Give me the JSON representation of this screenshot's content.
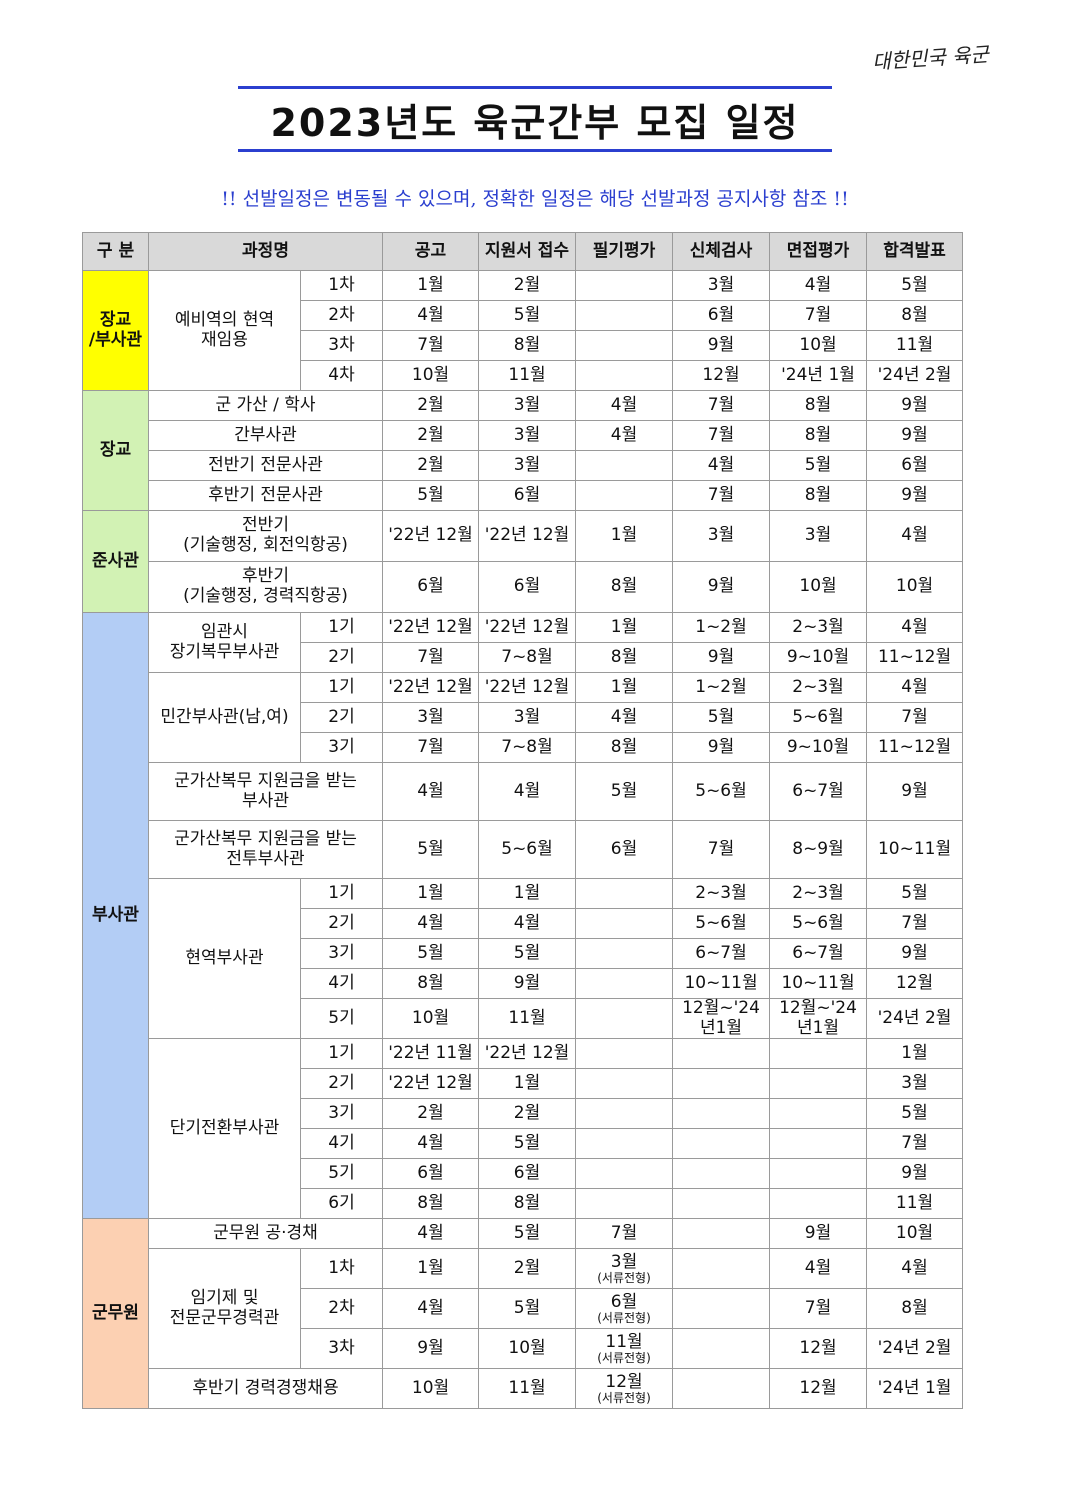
{
  "logo_text": "대한민국 육군",
  "title": "2023년도 육군간부 모집 일정",
  "notice": "!! 선발일정은 변동될 수 있으며, 정확한 일정은 해당 선발과정 공지사항 참조 !!",
  "table": {
    "headers": [
      "구 분",
      "과정명",
      "공고",
      "지원서 접수",
      "필기평가",
      "신체검사",
      "면접평가",
      "합격발표"
    ],
    "groups": [
      {
        "category": "장교\n/부사관",
        "color": "#ffff00",
        "courses": [
          {
            "name": "예비역의 현역\n재임용",
            "rounds": [
              {
                "round": "1차",
                "cells": [
                  "1월",
                  "2월",
                  "",
                  "3월",
                  "4월",
                  "5월"
                ]
              },
              {
                "round": "2차",
                "cells": [
                  "4월",
                  "5월",
                  "",
                  "6월",
                  "7월",
                  "8월"
                ]
              },
              {
                "round": "3차",
                "cells": [
                  "7월",
                  "8월",
                  "",
                  "9월",
                  "10월",
                  "11월"
                ]
              },
              {
                "round": "4차",
                "cells": [
                  "10월",
                  "11월",
                  "",
                  "12월",
                  "'24년 1월",
                  "'24년 2월"
                ]
              }
            ]
          }
        ]
      },
      {
        "category": "장교",
        "color": "#d2f2b4",
        "courses": [
          {
            "name": "군 가산 / 학사",
            "cells": [
              "2월",
              "3월",
              "4월",
              "7월",
              "8월",
              "9월"
            ]
          },
          {
            "name": "간부사관",
            "cells": [
              "2월",
              "3월",
              "4월",
              "7월",
              "8월",
              "9월"
            ]
          },
          {
            "name": "전반기 전문사관",
            "cells": [
              "2월",
              "3월",
              "",
              "4월",
              "5월",
              "6월"
            ]
          },
          {
            "name": "후반기 전문사관",
            "cells": [
              "5월",
              "6월",
              "",
              "7월",
              "8월",
              "9월"
            ]
          }
        ]
      },
      {
        "category": "준사관",
        "color": "#d2f2b4",
        "courses": [
          {
            "name": "전반기\n(기술행정, 회전익항공)",
            "cells": [
              "'22년 12월",
              "'22년 12월",
              "1월",
              "3월",
              "3월",
              "4월"
            ]
          },
          {
            "name": "후반기\n(기술행정, 경력직항공)",
            "cells": [
              "6월",
              "6월",
              "8월",
              "9월",
              "10월",
              "10월"
            ]
          }
        ]
      },
      {
        "category": "부사관",
        "color": "#b3cdf5",
        "courses": [
          {
            "name": "임관시\n장기복무부사관",
            "rounds": [
              {
                "round": "1기",
                "cells": [
                  "'22년 12월",
                  "'22년 12월",
                  "1월",
                  "1~2월",
                  "2~3월",
                  "4월"
                ]
              },
              {
                "round": "2기",
                "cells": [
                  "7월",
                  "7~8월",
                  "8월",
                  "9월",
                  "9~10월",
                  "11~12월"
                ]
              }
            ]
          },
          {
            "name": "민간부사관(남,여)",
            "rounds": [
              {
                "round": "1기",
                "cells": [
                  "'22년 12월",
                  "'22년 12월",
                  "1월",
                  "1~2월",
                  "2~3월",
                  "4월"
                ]
              },
              {
                "round": "2기",
                "cells": [
                  "3월",
                  "3월",
                  "4월",
                  "5월",
                  "5~6월",
                  "7월"
                ]
              },
              {
                "round": "3기",
                "cells": [
                  "7월",
                  "7~8월",
                  "8월",
                  "9월",
                  "9~10월",
                  "11~12월"
                ]
              }
            ]
          },
          {
            "name": "군가산복무 지원금을 받는\n부사관",
            "cells": [
              "4월",
              "4월",
              "5월",
              "5~6월",
              "6~7월",
              "9월"
            ]
          },
          {
            "name": "군가산복무 지원금을 받는\n전투부사관",
            "cells": [
              "5월",
              "5~6월",
              "6월",
              "7월",
              "8~9월",
              "10~11월"
            ]
          },
          {
            "name": "현역부사관",
            "rounds": [
              {
                "round": "1기",
                "cells": [
                  "1월",
                  "1월",
                  "",
                  "2~3월",
                  "2~3월",
                  "5월"
                ]
              },
              {
                "round": "2기",
                "cells": [
                  "4월",
                  "4월",
                  "",
                  "5~6월",
                  "5~6월",
                  "7월"
                ]
              },
              {
                "round": "3기",
                "cells": [
                  "5월",
                  "5월",
                  "",
                  "6~7월",
                  "6~7월",
                  "9월"
                ]
              },
              {
                "round": "4기",
                "cells": [
                  "8월",
                  "9월",
                  "",
                  "10~11월",
                  "10~11월",
                  "12월"
                ]
              },
              {
                "round": "5기",
                "cells": [
                  "10월",
                  "11월",
                  "",
                  "12월~'24년1월",
                  "12월~'24년1월",
                  "'24년 2월"
                ]
              }
            ]
          },
          {
            "name": "단기전환부사관",
            "rounds": [
              {
                "round": "1기",
                "cells": [
                  "'22년 11월",
                  "'22년 12월",
                  "",
                  "",
                  "",
                  "1월"
                ]
              },
              {
                "round": "2기",
                "cells": [
                  "'22년 12월",
                  "1월",
                  "",
                  "",
                  "",
                  "3월"
                ]
              },
              {
                "round": "3기",
                "cells": [
                  "2월",
                  "2월",
                  "",
                  "",
                  "",
                  "5월"
                ]
              },
              {
                "round": "4기",
                "cells": [
                  "4월",
                  "5월",
                  "",
                  "",
                  "",
                  "7월"
                ]
              },
              {
                "round": "5기",
                "cells": [
                  "6월",
                  "6월",
                  "",
                  "",
                  "",
                  "9월"
                ]
              },
              {
                "round": "6기",
                "cells": [
                  "8월",
                  "8월",
                  "",
                  "",
                  "",
                  "11월"
                ]
              }
            ]
          }
        ]
      },
      {
        "category": "군무원",
        "color": "#fcd0b2",
        "courses": [
          {
            "name": "군무원 공·경채",
            "cells": [
              "4월",
              "5월",
              "7월",
              "",
              "9월",
              "10월"
            ]
          },
          {
            "name": "임기제 및\n전문군무경력관",
            "rounds": [
              {
                "round": "1차",
                "cells": [
                  "1월",
                  "2월",
                  "3월",
                  "",
                  "4월",
                  "4월"
                ],
                "written_note": "(서류전형)"
              },
              {
                "round": "2차",
                "cells": [
                  "4월",
                  "5월",
                  "6월",
                  "",
                  "7월",
                  "8월"
                ],
                "written_note": "(서류전형)"
              },
              {
                "round": "3차",
                "cells": [
                  "9월",
                  "10월",
                  "11월",
                  "",
                  "12월",
                  "'24년 2월"
                ],
                "written_note": "(서류전형)"
              }
            ]
          },
          {
            "name": "후반기 경력경쟁채용",
            "cells": [
              "10월",
              "11월",
              "12월",
              "",
              "12월",
              "'24년 1월"
            ],
            "written_note": "(서류전형)"
          }
        ]
      }
    ]
  }
}
